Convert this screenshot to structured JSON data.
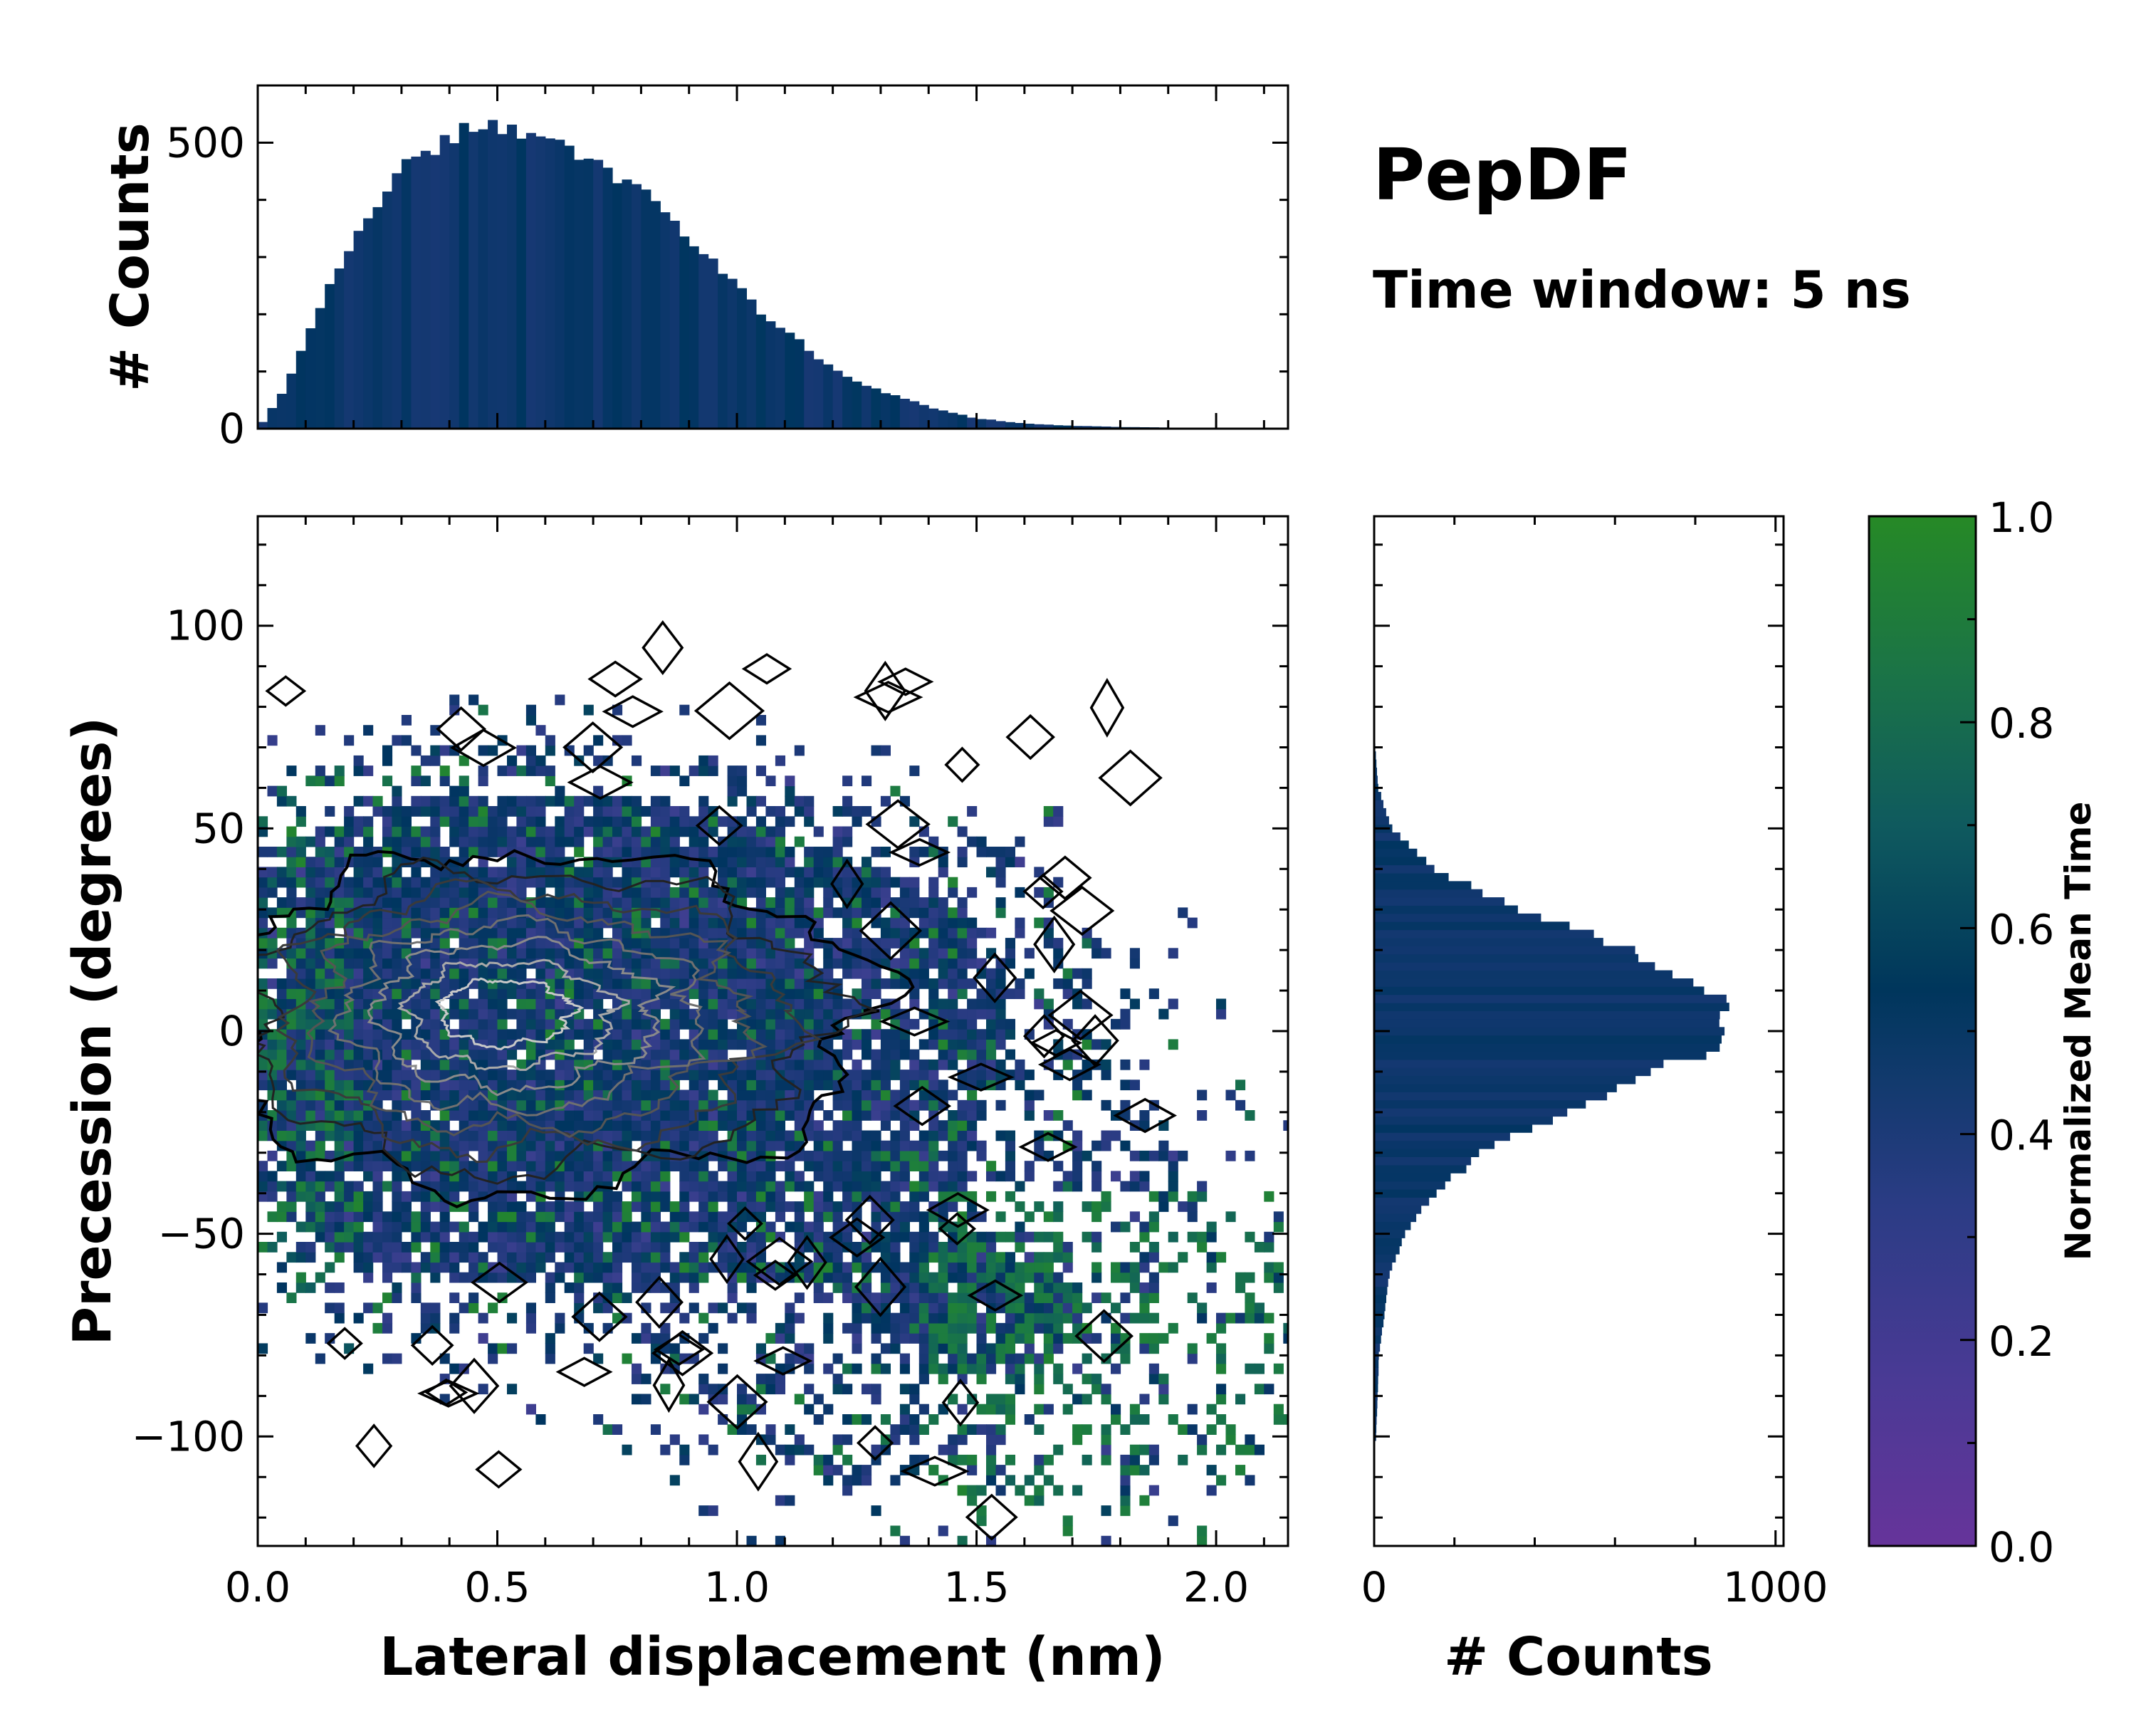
{
  "chart_data": [
    {
      "panel": "joint-2d-histogram",
      "type": "heatmap",
      "xlabel": "Lateral displacement (nm)",
      "ylabel": "Precession (degrees)",
      "xlim": [
        0.0,
        2.15
      ],
      "ylim": [
        -127,
        127
      ],
      "xticks": [
        0.0,
        0.5,
        1.0,
        1.5,
        2.0
      ],
      "xtick_labels": [
        "0.0",
        "0.5",
        "1.0",
        "1.5",
        "2.0"
      ],
      "yticks": [
        100,
        50,
        0,
        -50,
        -100
      ],
      "ytick_labels": [
        "100",
        "50",
        "0",
        "−50",
        "−100"
      ],
      "color_encoding": "Normalized Mean Time",
      "density_center": {
        "x": 0.5,
        "y": 5
      },
      "density_spread": {
        "x": 0.32,
        "y": 22
      },
      "contour_levels": [
        1,
        2,
        3,
        4,
        5,
        6,
        7,
        8
      ],
      "contour_colors": [
        "#000000",
        "#222222",
        "#3a3a3a",
        "#555555",
        "#707070",
        "#8a8a8a",
        "#a8a8a8",
        "#c8c8c8"
      ]
    },
    {
      "panel": "top-marginal-histogram",
      "type": "bar",
      "ylabel": "# Counts",
      "xlim": [
        0.0,
        2.15
      ],
      "ylim": [
        0,
        600
      ],
      "yticks": [
        0,
        500
      ],
      "ytick_labels": [
        "0",
        "500"
      ],
      "bin_width": 0.02,
      "bin_centers_sample": [
        0.05,
        0.1,
        0.2,
        0.3,
        0.4,
        0.45,
        0.5,
        0.6,
        0.7,
        0.8,
        0.9,
        1.0,
        1.1,
        1.2,
        1.3,
        1.4,
        1.5,
        1.6,
        1.7,
        1.8,
        1.9,
        2.0
      ],
      "counts_sample": [
        60,
        160,
        330,
        450,
        505,
        525,
        520,
        515,
        470,
        410,
        330,
        245,
        170,
        105,
        65,
        38,
        18,
        9,
        5,
        3,
        2,
        1
      ]
    },
    {
      "panel": "right-marginal-histogram",
      "type": "bar",
      "orientation": "horizontal",
      "xlabel": "# Counts",
      "xlim": [
        0,
        1020
      ],
      "xticks": [
        0,
        1000
      ],
      "xtick_labels": [
        "0",
        "1000"
      ],
      "bin_width_degrees": 2,
      "bin_centers_sample": [
        -100,
        -80,
        -60,
        -50,
        -40,
        -30,
        -20,
        -10,
        -5,
        0,
        5,
        10,
        20,
        30,
        40,
        50,
        60,
        70
      ],
      "counts_sample": [
        5,
        12,
        38,
        80,
        150,
        270,
        470,
        700,
        820,
        880,
        900,
        850,
        640,
        360,
        150,
        45,
        10,
        3
      ]
    },
    {
      "panel": "colorbar",
      "type": "colorbar",
      "label": "Normalized Mean Time",
      "range": [
        0.0,
        1.0
      ],
      "ticks": [
        0.0,
        0.2,
        0.4,
        0.6,
        0.8,
        1.0
      ],
      "tick_labels": [
        "0.0",
        "0.2",
        "0.4",
        "0.6",
        "0.8",
        "1.0"
      ],
      "colors": [
        "#66349a",
        "#3b3f8f",
        "#233a7e",
        "#003560",
        "#0e5b5e",
        "#1b7a44",
        "#268926"
      ]
    }
  ],
  "titles": {
    "main": "PepDF",
    "sub": "Time window: 5 ns"
  }
}
